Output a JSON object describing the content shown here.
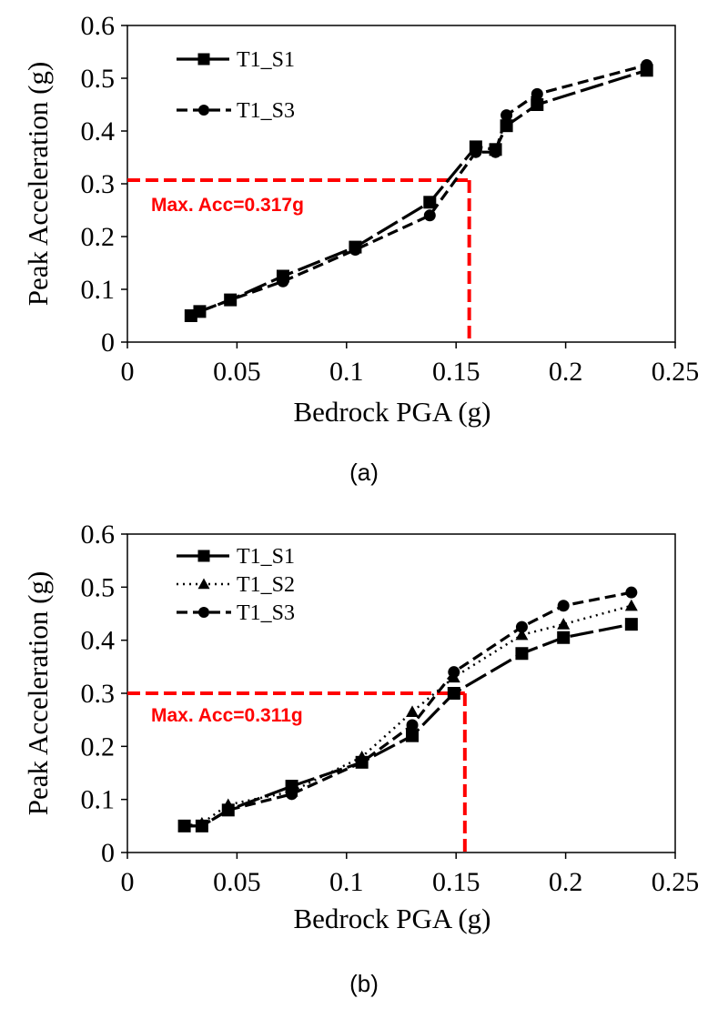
{
  "colors": {
    "series": "#000000",
    "annotation": "#ff0000"
  },
  "chart_data": [
    {
      "type": "line",
      "panel_label": "(a)",
      "xlabel": "Bedrock PGA (g)",
      "ylabel": "Peak Acceleration (g)",
      "xlim": [
        0,
        0.25
      ],
      "ylim": [
        0,
        0.6
      ],
      "xticks": [
        0,
        0.05,
        0.1,
        0.15,
        0.2,
        0.25
      ],
      "yticks": [
        0,
        0.1,
        0.2,
        0.3,
        0.4,
        0.5,
        0.6
      ],
      "xtick_labels": [
        "0",
        "0.05",
        "0.1",
        "0.15",
        "0.2",
        "0.25"
      ],
      "ytick_labels": [
        "0",
        "0.1",
        "0.2",
        "0.3",
        "0.4",
        "0.5",
        "0.6"
      ],
      "grid": false,
      "legend_position": "top-left",
      "series": [
        {
          "name": "T1_S1",
          "marker": "square",
          "line_style": "long-dash",
          "x": [
            0.029,
            0.033,
            0.047,
            0.071,
            0.104,
            0.138,
            0.159,
            0.168,
            0.173,
            0.187,
            0.237
          ],
          "y": [
            0.05,
            0.058,
            0.08,
            0.125,
            0.18,
            0.265,
            0.37,
            0.365,
            0.41,
            0.45,
            0.515
          ]
        },
        {
          "name": "T1_S3",
          "marker": "circle",
          "line_style": "dash",
          "x": [
            0.029,
            0.033,
            0.047,
            0.071,
            0.104,
            0.138,
            0.159,
            0.168,
            0.173,
            0.187,
            0.237
          ],
          "y": [
            0.05,
            0.058,
            0.08,
            0.115,
            0.175,
            0.24,
            0.36,
            0.36,
            0.43,
            0.47,
            0.525
          ]
        }
      ],
      "annotation": {
        "text": "Max. Acc=0.317g",
        "x": 0.156,
        "y": 0.307
      }
    },
    {
      "type": "line",
      "panel_label": "(b)",
      "xlabel": "Bedrock PGA (g)",
      "ylabel": "Peak Acceleration (g)",
      "xlim": [
        0,
        0.25
      ],
      "ylim": [
        0,
        0.6
      ],
      "xticks": [
        0,
        0.05,
        0.1,
        0.15,
        0.2,
        0.25
      ],
      "yticks": [
        0,
        0.1,
        0.2,
        0.3,
        0.4,
        0.5,
        0.6
      ],
      "xtick_labels": [
        "0",
        "0.05",
        "0.1",
        "0.15",
        "0.2",
        "0.25"
      ],
      "ytick_labels": [
        "0",
        "0.1",
        "0.2",
        "0.3",
        "0.4",
        "0.5",
        "0.6"
      ],
      "grid": false,
      "legend_position": "top-left",
      "series": [
        {
          "name": "T1_S1",
          "marker": "square",
          "line_style": "long-dash",
          "x": [
            0.026,
            0.034,
            0.046,
            0.075,
            0.107,
            0.13,
            0.149,
            0.18,
            0.199,
            0.23
          ],
          "y": [
            0.05,
            0.05,
            0.08,
            0.125,
            0.17,
            0.22,
            0.3,
            0.375,
            0.405,
            0.43
          ]
        },
        {
          "name": "T1_S2",
          "marker": "triangle",
          "line_style": "dot",
          "x": [
            0.026,
            0.034,
            0.046,
            0.075,
            0.107,
            0.13,
            0.149,
            0.18,
            0.199,
            0.23
          ],
          "y": [
            0.05,
            0.055,
            0.09,
            0.115,
            0.18,
            0.265,
            0.33,
            0.41,
            0.43,
            0.465
          ]
        },
        {
          "name": "T1_S3",
          "marker": "circle",
          "line_style": "dash",
          "x": [
            0.026,
            0.034,
            0.046,
            0.075,
            0.107,
            0.13,
            0.149,
            0.18,
            0.199,
            0.23
          ],
          "y": [
            0.05,
            0.05,
            0.08,
            0.11,
            0.17,
            0.24,
            0.34,
            0.425,
            0.465,
            0.49
          ]
        }
      ],
      "annotation": {
        "text": "Max. Acc=0.311g",
        "x": 0.154,
        "y": 0.3
      }
    }
  ]
}
